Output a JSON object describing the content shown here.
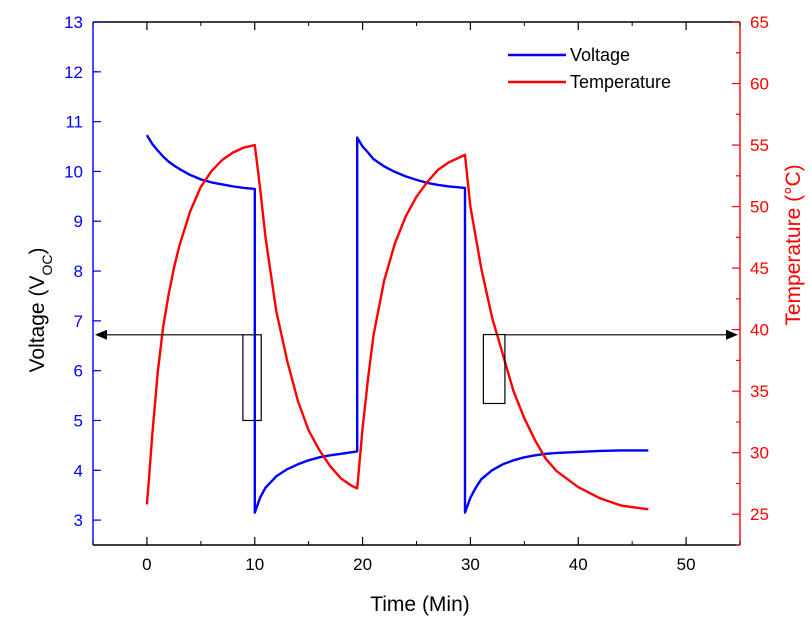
{
  "chart_data": {
    "type": "line",
    "xlabel": "Time (Min)",
    "ylabel_left": "Voltage (V",
    "ylabel_left_sub": "OC",
    "ylabel_left_suffix": ")",
    "ylabel_right": "Temperature (°C)",
    "xlim": [
      -5,
      55
    ],
    "ylim_left": [
      2.5,
      13
    ],
    "ylim_right": [
      22.5,
      65
    ],
    "x_ticks": [
      0,
      10,
      20,
      30,
      40,
      50
    ],
    "y_left_ticks": [
      3,
      4,
      5,
      6,
      7,
      8,
      9,
      10,
      11,
      12,
      13
    ],
    "y_right_ticks": [
      25,
      30,
      35,
      40,
      45,
      50,
      55,
      60,
      65
    ],
    "grid": false,
    "legend_position": "top-right",
    "colors": {
      "voltage": "#0000ff",
      "temperature": "#ff0000",
      "axis": "#000000"
    },
    "series": [
      {
        "name": "Voltage",
        "axis": "left",
        "x": [
          0,
          0.5,
          1,
          1.5,
          2,
          2.5,
          3,
          4,
          5,
          6,
          7,
          8,
          9,
          10,
          10,
          10.5,
          11,
          12,
          13,
          14,
          15,
          16,
          17,
          18,
          19.5,
          19.5,
          20,
          20.5,
          21,
          22,
          23,
          24,
          25,
          26,
          27,
          28,
          29.5,
          29.5,
          30,
          30.5,
          31,
          32,
          33,
          34,
          35,
          36,
          37,
          38,
          40,
          42,
          44,
          46.5
        ],
        "values": [
          10.73,
          10.55,
          10.42,
          10.3,
          10.2,
          10.12,
          10.05,
          9.93,
          9.84,
          9.78,
          9.74,
          9.7,
          9.67,
          9.65,
          3.15,
          3.45,
          3.65,
          3.88,
          4.02,
          4.12,
          4.2,
          4.26,
          4.3,
          4.33,
          4.38,
          10.68,
          10.5,
          10.38,
          10.25,
          10.1,
          9.99,
          9.9,
          9.83,
          9.77,
          9.73,
          9.7,
          9.67,
          3.15,
          3.45,
          3.65,
          3.82,
          4.0,
          4.12,
          4.2,
          4.26,
          4.3,
          4.33,
          4.35,
          4.37,
          4.39,
          4.4,
          4.4
        ]
      },
      {
        "name": "Temperature",
        "axis": "right",
        "x": [
          0,
          0.2,
          0.5,
          1,
          1.5,
          2,
          2.5,
          3,
          4,
          5,
          6,
          7,
          8,
          9,
          10,
          10.5,
          11,
          12,
          13,
          14,
          15,
          16,
          17,
          18,
          19,
          19.5,
          20,
          20.5,
          21,
          22,
          23,
          24,
          25,
          26,
          27,
          28,
          29,
          29.5,
          30,
          31,
          32,
          33,
          34,
          35,
          36,
          37,
          38,
          40,
          42,
          44,
          46.5
        ],
        "values": [
          25.8,
          28,
          31.5,
          36.5,
          40.2,
          42.8,
          45,
          46.8,
          49.6,
          51.6,
          52.9,
          53.8,
          54.4,
          54.8,
          55,
          51.5,
          47.5,
          41.5,
          37.5,
          34.2,
          31.8,
          30.2,
          28.9,
          27.9,
          27.3,
          27.1,
          32,
          36,
          39.5,
          44,
          47,
          49.2,
          50.8,
          52,
          53,
          53.6,
          54,
          54.2,
          50,
          45,
          41,
          38,
          35,
          32.8,
          31,
          29.5,
          28.5,
          27.2,
          26.3,
          25.7,
          25.4
        ]
      }
    ]
  },
  "legend": {
    "items": [
      {
        "label": "Voltage",
        "color": "#0000ff"
      },
      {
        "label": "Temperature",
        "color": "#ff0000"
      }
    ]
  }
}
